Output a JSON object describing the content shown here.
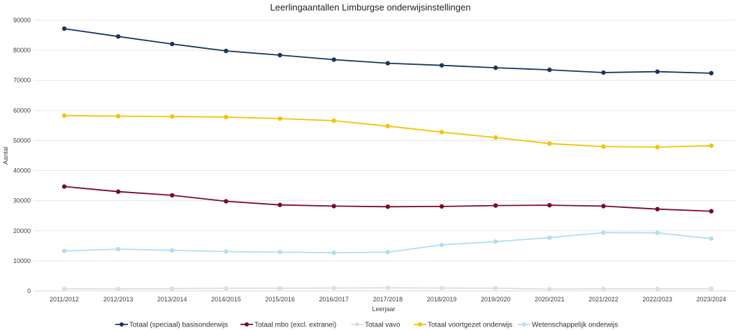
{
  "chart_data": {
    "type": "line",
    "title": "Leerlingaantallen Limburgse onderwijsinstellingen",
    "xlabel": "Leerjaar",
    "ylabel": "Aantal",
    "categories": [
      "2011/2012",
      "2012/2013",
      "2013/2014",
      "2014/2015",
      "2015/2016",
      "2016/2017",
      "2017/2018",
      "2018/2019",
      "2019/2020",
      "2020/2021",
      "2021/2022",
      "2022/2023",
      "2023/2024"
    ],
    "ylim": [
      0,
      90000
    ],
    "yticks": [
      0,
      10000,
      20000,
      30000,
      40000,
      50000,
      60000,
      70000,
      80000,
      90000
    ],
    "ytick_labels": [
      "0",
      "10000",
      "20000",
      "30000",
      "40000",
      "50000",
      "60000",
      "70000",
      "80000",
      "90000"
    ],
    "grid": true,
    "legend_position": "bottom",
    "series": [
      {
        "name": "Totaal (speciaal) basisonderwijs",
        "color": "#17375e",
        "values": [
          87200,
          84600,
          82100,
          79800,
          78400,
          76900,
          75700,
          75000,
          74200,
          73500,
          72600,
          72900,
          72400
        ]
      },
      {
        "name": "Totaal mbo (excl. extranei)",
        "color": "#7b0a24",
        "values": [
          34700,
          33000,
          31800,
          29800,
          28600,
          28200,
          28000,
          28100,
          28400,
          28500,
          28200,
          27200,
          26500
        ]
      },
      {
        "name": "Totaal vavo",
        "color": "#e2ddd3",
        "values": [
          700,
          650,
          800,
          850,
          900,
          950,
          1050,
          950,
          900,
          600,
          700,
          700,
          800
        ]
      },
      {
        "name": "Totaal voortgezet onderwijs",
        "color": "#f5c400",
        "values": [
          58300,
          58100,
          58000,
          57800,
          57300,
          56600,
          54800,
          52800,
          51000,
          49000,
          48000,
          47800,
          48300
        ]
      },
      {
        "name": "Wetenschappelijk onderwijs",
        "color": "#b3dcf5",
        "values": [
          13300,
          13900,
          13500,
          13100,
          12900,
          12700,
          12900,
          15300,
          16400,
          17700,
          19400,
          19300,
          17400
        ]
      }
    ]
  }
}
